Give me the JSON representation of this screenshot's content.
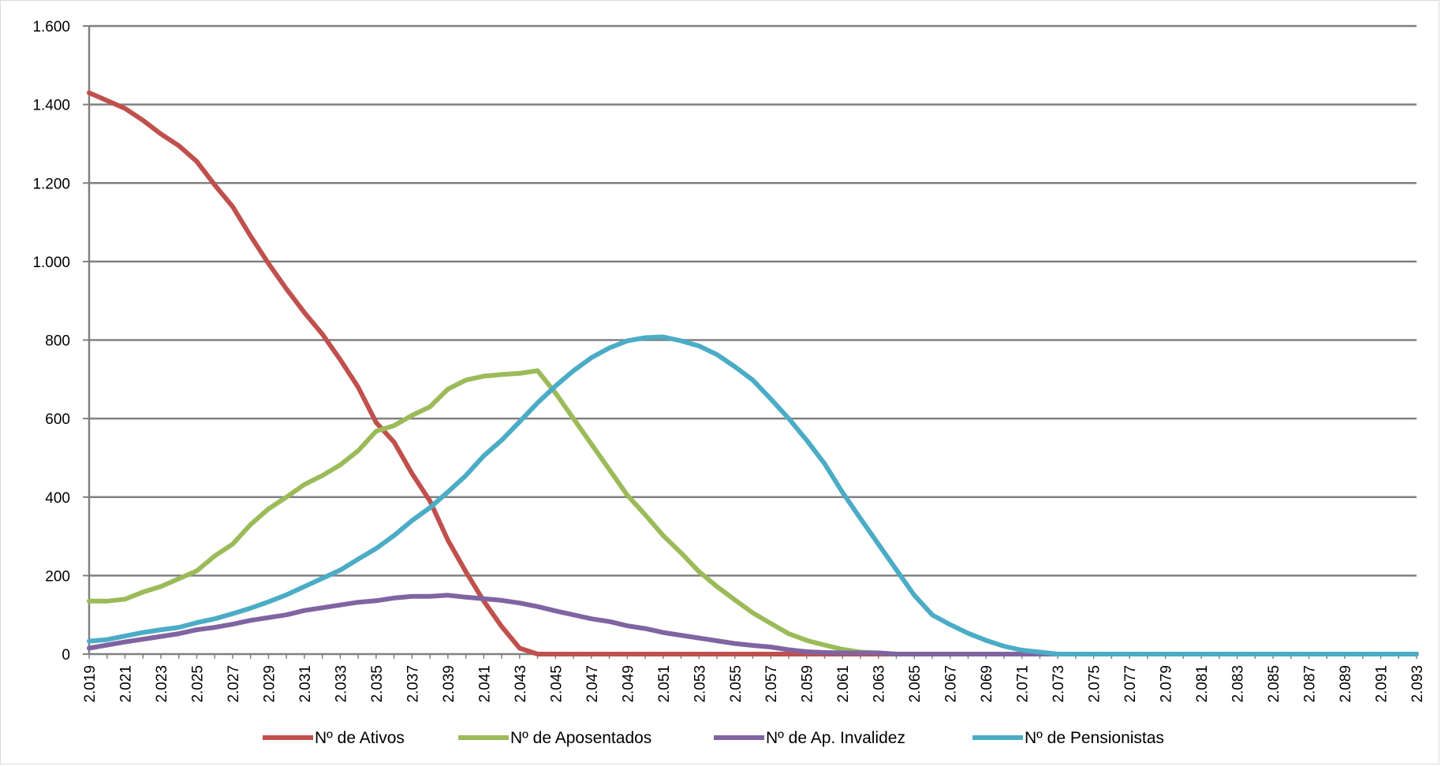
{
  "chart_data": {
    "type": "line",
    "title": "",
    "xlabel": "",
    "ylabel": "",
    "ylim": [
      0,
      1600
    ],
    "yticks": [
      0,
      200,
      400,
      600,
      800,
      1000,
      1200,
      1400,
      1600
    ],
    "ytick_labels": [
      "0",
      "200",
      "400",
      "600",
      "800",
      "1.000",
      "1.200",
      "1.400",
      "1.600"
    ],
    "x": [
      2019,
      2020,
      2021,
      2022,
      2023,
      2024,
      2025,
      2026,
      2027,
      2028,
      2029,
      2030,
      2031,
      2032,
      2033,
      2034,
      2035,
      2036,
      2037,
      2038,
      2039,
      2040,
      2041,
      2042,
      2043,
      2044,
      2045,
      2046,
      2047,
      2048,
      2049,
      2050,
      2051,
      2052,
      2053,
      2054,
      2055,
      2056,
      2057,
      2058,
      2059,
      2060,
      2061,
      2062,
      2063,
      2064,
      2065,
      2066,
      2067,
      2068,
      2069,
      2070,
      2071,
      2072,
      2073,
      2074,
      2075,
      2076,
      2077,
      2078,
      2079,
      2080,
      2081,
      2082,
      2083,
      2084,
      2085,
      2086,
      2087,
      2088,
      2089,
      2090,
      2091,
      2092,
      2093
    ],
    "xtick_labels": [
      "2.019",
      "2.021",
      "2.023",
      "2.025",
      "2.027",
      "2.029",
      "2.031",
      "2.033",
      "2.035",
      "2.037",
      "2.039",
      "2.041",
      "2.043",
      "2.045",
      "2.047",
      "2.049",
      "2.051",
      "2.053",
      "2.055",
      "2.057",
      "2.059",
      "2.061",
      "2.063",
      "2.065",
      "2.067",
      "2.069",
      "2.071",
      "2.073",
      "2.075",
      "2.077",
      "2.079",
      "2.081",
      "2.083",
      "2.085",
      "2.087",
      "2.089",
      "2.091",
      "2.093"
    ],
    "grid": true,
    "legend_position": "bottom",
    "series": [
      {
        "name": "Nº de Ativos",
        "color": "#c0504d",
        "values": [
          1430,
          1410,
          1390,
          1360,
          1325,
          1295,
          1255,
          1195,
          1140,
          1065,
          995,
          930,
          870,
          815,
          750,
          680,
          590,
          540,
          460,
          390,
          290,
          210,
          135,
          70,
          15,
          0,
          0,
          0,
          0,
          0,
          0,
          0,
          0,
          0,
          0,
          0,
          0,
          0,
          0,
          0,
          0,
          0,
          0,
          0,
          0,
          0,
          0,
          0,
          0,
          0,
          0,
          0,
          0,
          0,
          0,
          0,
          0,
          0,
          0,
          0,
          0,
          0,
          0,
          0,
          0,
          0,
          0,
          0,
          0,
          0,
          0,
          0,
          0,
          0,
          0
        ]
      },
      {
        "name": "Nº de Aposentados",
        "color": "#9bbb59",
        "values": [
          135,
          135,
          140,
          158,
          172,
          192,
          212,
          250,
          280,
          330,
          370,
          400,
          432,
          455,
          482,
          518,
          568,
          582,
          608,
          630,
          675,
          698,
          708,
          712,
          715,
          722,
          665,
          600,
          535,
          470,
          405,
          355,
          302,
          258,
          210,
          172,
          138,
          105,
          78,
          52,
          35,
          23,
          12,
          5,
          3,
          0,
          0,
          0,
          0,
          0,
          0,
          0,
          0,
          0,
          0,
          0,
          0,
          0,
          0,
          0,
          0,
          0,
          0,
          0,
          0,
          0,
          0,
          0,
          0,
          0,
          0,
          0,
          0,
          0,
          0
        ]
      },
      {
        "name": "Nº de Ap. Invalidez",
        "color": "#8064a2",
        "values": [
          15,
          23,
          31,
          38,
          45,
          52,
          62,
          68,
          76,
          86,
          93,
          100,
          111,
          118,
          125,
          132,
          136,
          143,
          147,
          147,
          150,
          145,
          141,
          137,
          130,
          121,
          110,
          100,
          90,
          83,
          72,
          65,
          55,
          48,
          41,
          34,
          27,
          22,
          18,
          11,
          6,
          4,
          3,
          3,
          3,
          0,
          0,
          0,
          0,
          0,
          0,
          0,
          0,
          0,
          0,
          0,
          0,
          0,
          0,
          0,
          0,
          0,
          0,
          0,
          0,
          0,
          0,
          0,
          0,
          0,
          0,
          0,
          0,
          0,
          0
        ]
      },
      {
        "name": "Nº de Pensionistas",
        "color": "#4bacc6",
        "values": [
          33,
          37,
          46,
          55,
          62,
          68,
          80,
          90,
          103,
          117,
          133,
          151,
          172,
          193,
          214,
          242,
          269,
          302,
          340,
          373,
          413,
          455,
          505,
          545,
          592,
          640,
          683,
          722,
          755,
          780,
          798,
          806,
          808,
          798,
          785,
          763,
          732,
          698,
          650,
          600,
          545,
          485,
          412,
          345,
          280,
          215,
          150,
          100,
          75,
          53,
          35,
          20,
          10,
          5,
          0,
          0,
          0,
          0,
          0,
          0,
          0,
          0,
          0,
          0,
          0,
          0,
          0,
          0,
          0,
          0,
          0,
          0,
          0,
          0,
          0
        ]
      }
    ]
  }
}
